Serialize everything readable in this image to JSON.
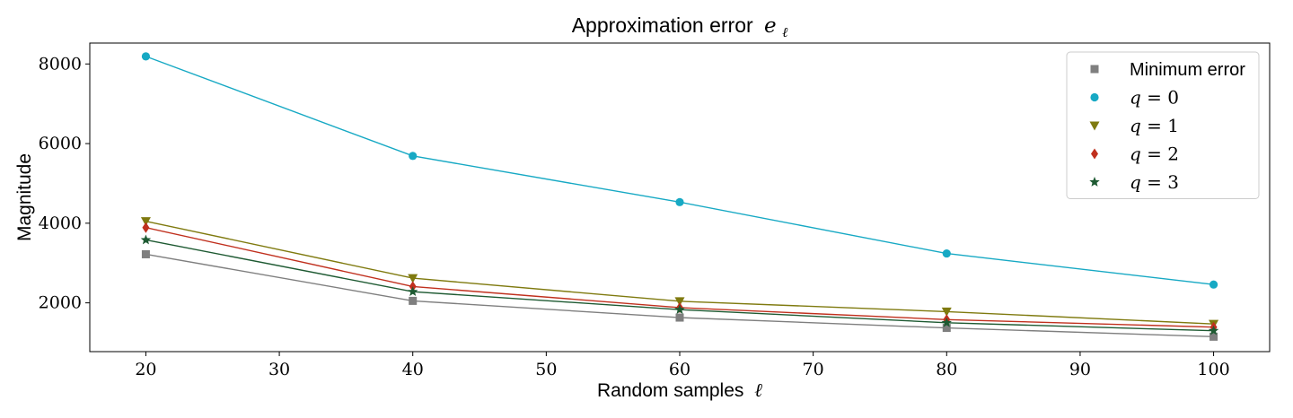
{
  "chart_data": {
    "type": "line",
    "title": "Approximation error",
    "title_math": "e",
    "title_sub": "ℓ",
    "xlabel": "Random samples",
    "xlabel_math": "ℓ",
    "ylabel": "Magnitude",
    "xlim": [
      15.8,
      104.2
    ],
    "ylim": [
      775,
      8525
    ],
    "xticks": [
      20,
      30,
      40,
      50,
      60,
      70,
      80,
      90,
      100
    ],
    "yticks": [
      2000,
      4000,
      6000,
      8000
    ],
    "x": [
      20,
      40,
      60,
      80,
      100
    ],
    "legend_position": "top-right",
    "grid": false,
    "series": [
      {
        "key": "min",
        "name": "Minimum error",
        "math": false,
        "color": "#7f7f7f",
        "marker": "square",
        "values": [
          3220,
          2050,
          1630,
          1370,
          1150
        ]
      },
      {
        "key": "q0",
        "name": "q = 0",
        "math": true,
        "color": "#17a9c4",
        "marker": "circle",
        "values": [
          8190,
          5690,
          4530,
          3240,
          2460
        ]
      },
      {
        "key": "q1",
        "name": "q = 1",
        "math": true,
        "color": "#7f7a0f",
        "marker": "triangle-down",
        "values": [
          4050,
          2620,
          2040,
          1780,
          1470
        ]
      },
      {
        "key": "q2",
        "name": "q = 2",
        "math": true,
        "color": "#c0301e",
        "marker": "diamond",
        "values": [
          3890,
          2410,
          1880,
          1580,
          1390
        ]
      },
      {
        "key": "q3",
        "name": "q = 3",
        "math": true,
        "color": "#1e5a32",
        "marker": "star",
        "values": [
          3580,
          2280,
          1830,
          1500,
          1300
        ]
      }
    ]
  }
}
